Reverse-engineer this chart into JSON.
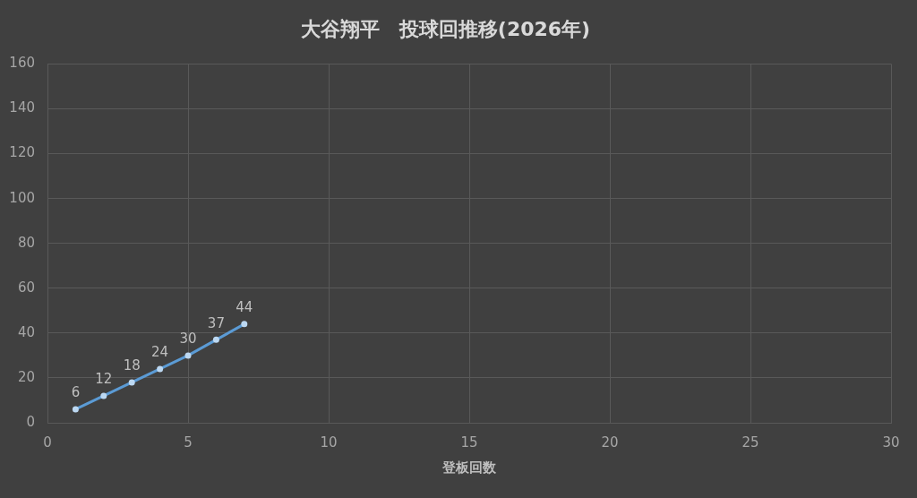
{
  "chart_data": {
    "type": "line",
    "title": "大谷翔平　投球回推移(2026年)",
    "xlabel": "登板回数",
    "x": [
      1,
      2,
      3,
      4,
      5,
      6,
      7
    ],
    "series": [
      {
        "color": "#5b9bd5",
        "values": [
          6,
          12,
          18,
          24,
          30,
          37,
          44
        ]
      }
    ],
    "xlim": [
      0,
      30
    ],
    "xticks": [
      0,
      5,
      10,
      15,
      20,
      25,
      30
    ],
    "ylim": [
      0,
      160
    ],
    "yticks": [
      0,
      20,
      40,
      60,
      80,
      100,
      120,
      140,
      160
    ],
    "grid": true,
    "marker": "circle",
    "line_style": "solid",
    "data_labels": true
  }
}
